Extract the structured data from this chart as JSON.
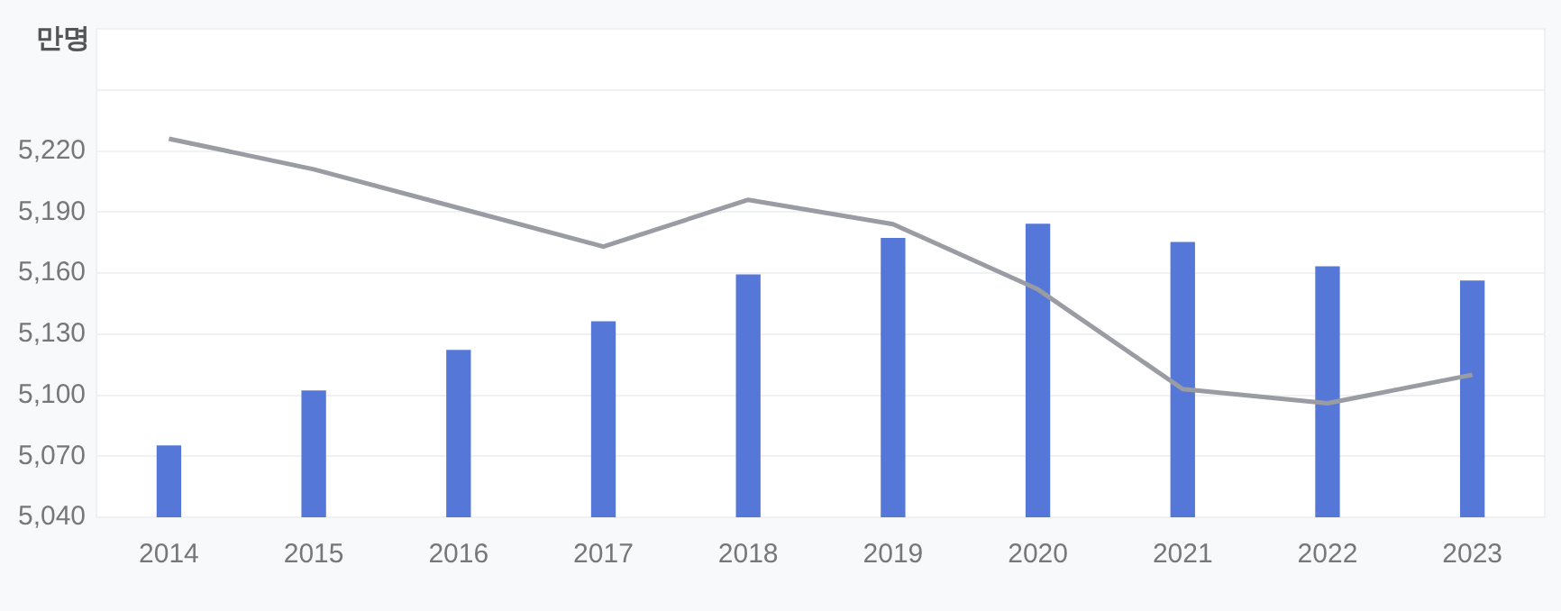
{
  "chart_data": {
    "type": "bar",
    "ylabel": "만명",
    "categories": [
      "2014",
      "2015",
      "2016",
      "2017",
      "2018",
      "2019",
      "2020",
      "2021",
      "2022",
      "2023"
    ],
    "series": [
      {
        "color": "#5578d8",
        "values": [
          5075,
          5102,
          5122,
          5136,
          5159,
          5177,
          5184,
          5175,
          5163,
          5156
        ]
      },
      {
        "type": "line",
        "color": "#9a9ca4",
        "values": [
          5226,
          5211,
          5192,
          5173,
          5196,
          5184,
          5152,
          5103,
          5096,
          5110
        ]
      }
    ],
    "ylim": [
      5040,
      5280
    ],
    "yticks": [
      {
        "value": 5040,
        "label": "5,040"
      },
      {
        "value": 5070,
        "label": "5,070"
      },
      {
        "value": 5100,
        "label": "5,100"
      },
      {
        "value": 5130,
        "label": "5,130"
      },
      {
        "value": 5160,
        "label": "5,160"
      },
      {
        "value": 5190,
        "label": "5,190"
      },
      {
        "value": 5220,
        "label": "5,220"
      },
      {
        "value": 5250,
        "label": null
      },
      {
        "value": 5280,
        "label": null
      }
    ],
    "grid": "y"
  }
}
